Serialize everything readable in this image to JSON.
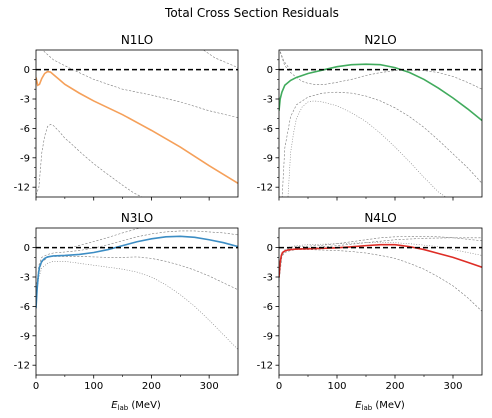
{
  "figure": {
    "title": "Total Cross Section Residuals",
    "xlabel_main": "E",
    "xlabel_sub": "lab",
    "xlabel_unit": " (MeV)"
  },
  "chart_data": [
    {
      "type": "line",
      "title": "N1LO",
      "xlim": [
        0,
        350
      ],
      "ylim": [
        -13,
        2
      ],
      "xticks": [
        0,
        100,
        200,
        300
      ],
      "yticks": [
        0,
        -3,
        -6,
        -9,
        -12
      ],
      "xtick_labels_visible": false,
      "color": "#f5a05a",
      "reference_line": 0,
      "series": [
        {
          "role": "main",
          "style": "solid",
          "x": [
            0,
            3,
            6,
            10,
            15,
            20,
            25,
            30,
            40,
            50,
            75,
            100,
            150,
            200,
            250,
            300,
            350
          ],
          "y": [
            -0.8,
            -1.6,
            -1.5,
            -0.9,
            -0.4,
            -0.2,
            -0.25,
            -0.5,
            -1.0,
            -1.5,
            -2.4,
            -3.2,
            -4.6,
            -6.2,
            -7.9,
            -9.8,
            -11.6
          ]
        },
        {
          "role": "band",
          "style": "dashed",
          "x": [
            5,
            15,
            30,
            60,
            100,
            150,
            200,
            250,
            300,
            350
          ],
          "y": [
            2.5,
            1.8,
            1.0,
            0.1,
            -1.0,
            -2.0,
            -2.6,
            -3.3,
            -4.2,
            -4.9
          ]
        },
        {
          "role": "band",
          "style": "dashed",
          "x": [
            0,
            5,
            10,
            15,
            20,
            25,
            30,
            40,
            50,
            60,
            80,
            100,
            120,
            150,
            170,
            190
          ],
          "y": [
            -12.8,
            -12.0,
            -8.5,
            -6.8,
            -5.8,
            -5.6,
            -5.7,
            -6.3,
            -7.0,
            -7.5,
            -8.6,
            -9.6,
            -10.5,
            -11.8,
            -12.6,
            -13.2
          ]
        },
        {
          "role": "band",
          "style": "dashed",
          "x": [
            285,
            310,
            350
          ],
          "y": [
            2.2,
            1.2,
            0.2
          ]
        }
      ]
    },
    {
      "type": "line",
      "title": "N2LO",
      "xlim": [
        0,
        350
      ],
      "ylim": [
        -13,
        2
      ],
      "xticks": [
        0,
        100,
        200,
        300
      ],
      "yticks": [
        0,
        -3,
        -6,
        -9,
        -12
      ],
      "xtick_labels_visible": false,
      "color": "#41ab5d",
      "reference_line": 0,
      "series": [
        {
          "role": "main",
          "style": "solid",
          "x": [
            0,
            2,
            5,
            10,
            20,
            30,
            50,
            75,
            100,
            125,
            150,
            175,
            200,
            225,
            250,
            275,
            300,
            325,
            350
          ],
          "y": [
            -4.2,
            -3.0,
            -2.3,
            -1.6,
            -1.1,
            -0.8,
            -0.4,
            -0.05,
            0.3,
            0.5,
            0.55,
            0.5,
            0.2,
            -0.3,
            -1.0,
            -1.9,
            -2.9,
            -4.0,
            -5.2
          ]
        },
        {
          "role": "band",
          "style": "dashed",
          "x": [
            2,
            10,
            20,
            30,
            40,
            50,
            60,
            80,
            100,
            125,
            150,
            175,
            200,
            225,
            250,
            275,
            300,
            325,
            350
          ],
          "y": [
            1.8,
            0.4,
            -0.3,
            -0.8,
            -1.2,
            -1.4,
            -1.5,
            -1.5,
            -1.3,
            -1.0,
            -0.6,
            -0.3,
            -0.1,
            -0.05,
            -0.1,
            -0.3,
            -0.7,
            -1.3,
            -2.0
          ]
        },
        {
          "role": "band",
          "style": "dashed",
          "x": [
            5,
            10,
            20,
            30,
            50,
            75,
            100,
            125,
            150,
            175,
            200,
            225,
            250,
            275,
            300,
            325,
            350
          ],
          "y": [
            -13.5,
            -8.0,
            -4.8,
            -3.6,
            -2.8,
            -2.4,
            -2.3,
            -2.4,
            -2.7,
            -3.2,
            -3.9,
            -4.8,
            -5.9,
            -7.2,
            -8.6,
            -10.0,
            -11.6
          ]
        },
        {
          "role": "band",
          "style": "dotted",
          "x": [
            15,
            20,
            25,
            30,
            40,
            50,
            60,
            75,
            100,
            125,
            150,
            175,
            200,
            225,
            250,
            275,
            300
          ],
          "y": [
            -13.5,
            -8.5,
            -6.5,
            -5.0,
            -3.8,
            -3.3,
            -3.2,
            -3.3,
            -3.7,
            -4.4,
            -5.3,
            -6.5,
            -7.9,
            -9.4,
            -11.0,
            -12.5,
            -13.5
          ]
        },
        {
          "role": "band",
          "style": "dashed",
          "x": [
            0,
            8,
            18
          ],
          "y": [
            2.2,
            0.9,
            0.1
          ]
        }
      ]
    },
    {
      "type": "line",
      "title": "N3LO",
      "xlim": [
        0,
        350
      ],
      "ylim": [
        -13,
        2
      ],
      "xticks": [
        0,
        100,
        200,
        300
      ],
      "yticks": [
        0,
        -3,
        -6,
        -9,
        -12
      ],
      "xtick_labels_visible": true,
      "color": "#3c8dc4",
      "reference_line": 0,
      "series": [
        {
          "role": "main",
          "style": "solid",
          "x": [
            0,
            2,
            4,
            6,
            10,
            15,
            20,
            30,
            50,
            75,
            100,
            125,
            150,
            175,
            200,
            225,
            250,
            275,
            300,
            325,
            350
          ],
          "y": [
            -6.2,
            -4.2,
            -2.8,
            -2.0,
            -1.4,
            -1.1,
            -0.95,
            -0.85,
            -0.8,
            -0.7,
            -0.5,
            -0.2,
            0.2,
            0.6,
            0.9,
            1.1,
            1.15,
            1.05,
            0.8,
            0.5,
            0.1
          ]
        },
        {
          "role": "band",
          "style": "dashed",
          "x": [
            0,
            5,
            10,
            20,
            30,
            50,
            75,
            100,
            125,
            150,
            175,
            200,
            225,
            250,
            275,
            300,
            325,
            350
          ],
          "y": [
            -4.5,
            -1.8,
            -1.0,
            -0.7,
            -0.55,
            -0.45,
            -0.3,
            -0.05,
            0.3,
            0.7,
            1.1,
            1.4,
            1.6,
            1.7,
            1.7,
            1.6,
            1.5,
            1.3
          ]
        },
        {
          "role": "band",
          "style": "dashed",
          "x": [
            0,
            5,
            10,
            20,
            30,
            50,
            75,
            100,
            125,
            150,
            175,
            200,
            225,
            250,
            275,
            300,
            325,
            350
          ],
          "y": [
            -5.0,
            -2.5,
            -1.5,
            -1.0,
            -0.9,
            -0.9,
            -0.9,
            -0.95,
            -1.0,
            -1.0,
            -0.95,
            -1.1,
            -1.4,
            -1.8,
            -2.3,
            -2.9,
            -3.6,
            -4.3
          ]
        },
        {
          "role": "band",
          "style": "dashed",
          "x": [
            60,
            90,
            120,
            150,
            180,
            220
          ],
          "y": [
            0.0,
            0.45,
            0.95,
            1.5,
            2.0,
            2.4
          ]
        },
        {
          "role": "band",
          "style": "dotted",
          "x": [
            0,
            5,
            10,
            20,
            30,
            50,
            75,
            100,
            125,
            150,
            175,
            200,
            225,
            250,
            275,
            300,
            325,
            350
          ],
          "y": [
            -5.3,
            -3.0,
            -2.1,
            -1.6,
            -1.4,
            -1.4,
            -1.6,
            -1.8,
            -2.0,
            -2.2,
            -2.5,
            -3.0,
            -3.8,
            -4.8,
            -6.0,
            -7.4,
            -8.9,
            -10.4
          ]
        }
      ]
    },
    {
      "type": "line",
      "title": "N4LO",
      "xlim": [
        0,
        350
      ],
      "ylim": [
        -13,
        2
      ],
      "xticks": [
        0,
        100,
        200,
        300
      ],
      "yticks": [
        0,
        -3,
        -6,
        -9,
        -12
      ],
      "xtick_labels_visible": true,
      "color": "#de2d26",
      "reference_line": 0,
      "series": [
        {
          "role": "main",
          "style": "solid",
          "x": [
            0,
            2,
            4,
            6,
            10,
            15,
            20,
            30,
            50,
            75,
            100,
            125,
            150,
            175,
            200,
            225,
            250,
            275,
            300,
            325,
            350
          ],
          "y": [
            -3.0,
            -1.5,
            -0.8,
            -0.5,
            -0.35,
            -0.25,
            -0.2,
            -0.15,
            -0.12,
            -0.08,
            -0.02,
            0.08,
            0.2,
            0.3,
            0.3,
            0.1,
            -0.2,
            -0.6,
            -1.0,
            -1.5,
            -2.0
          ]
        },
        {
          "role": "band",
          "style": "dashed",
          "x": [
            0,
            5,
            10,
            20,
            30,
            50,
            75,
            100,
            125,
            150,
            175,
            200,
            225,
            250,
            275,
            300,
            325,
            350
          ],
          "y": [
            -3.0,
            -0.8,
            -0.3,
            0.0,
            0.1,
            0.15,
            0.25,
            0.4,
            0.6,
            0.8,
            1.0,
            1.1,
            1.15,
            1.15,
            1.1,
            1.0,
            0.85,
            0.7
          ]
        },
        {
          "role": "band",
          "style": "dashed",
          "x": [
            0,
            5,
            10,
            20,
            30,
            50,
            75,
            100,
            125,
            150,
            175,
            200,
            225,
            250,
            275,
            300,
            325,
            350
          ],
          "y": [
            -3.5,
            -0.9,
            -0.5,
            -0.3,
            -0.2,
            -0.2,
            -0.25,
            -0.3,
            -0.4,
            -0.55,
            -0.8,
            -1.1,
            -1.6,
            -2.2,
            -3.0,
            -3.9,
            -5.1,
            -6.5
          ]
        },
        {
          "role": "band",
          "style": "dotted",
          "x": [
            0,
            5,
            10,
            20,
            30,
            50,
            75,
            100,
            125,
            150,
            175,
            200,
            225,
            250,
            275,
            300,
            325,
            350
          ],
          "y": [
            -3.3,
            -0.6,
            -0.2,
            0.1,
            0.2,
            0.3,
            0.35,
            0.4,
            0.45,
            0.5,
            0.55,
            0.5,
            0.4,
            0.25,
            0.1,
            -0.2,
            -0.5,
            -0.8
          ]
        },
        {
          "role": "band",
          "style": "dashed",
          "x": [
            30,
            60,
            100,
            150,
            200,
            250,
            300,
            350
          ],
          "y": [
            -0.1,
            0.0,
            0.2,
            0.5,
            0.8,
            0.95,
            1.0,
            1.0
          ]
        }
      ]
    }
  ]
}
